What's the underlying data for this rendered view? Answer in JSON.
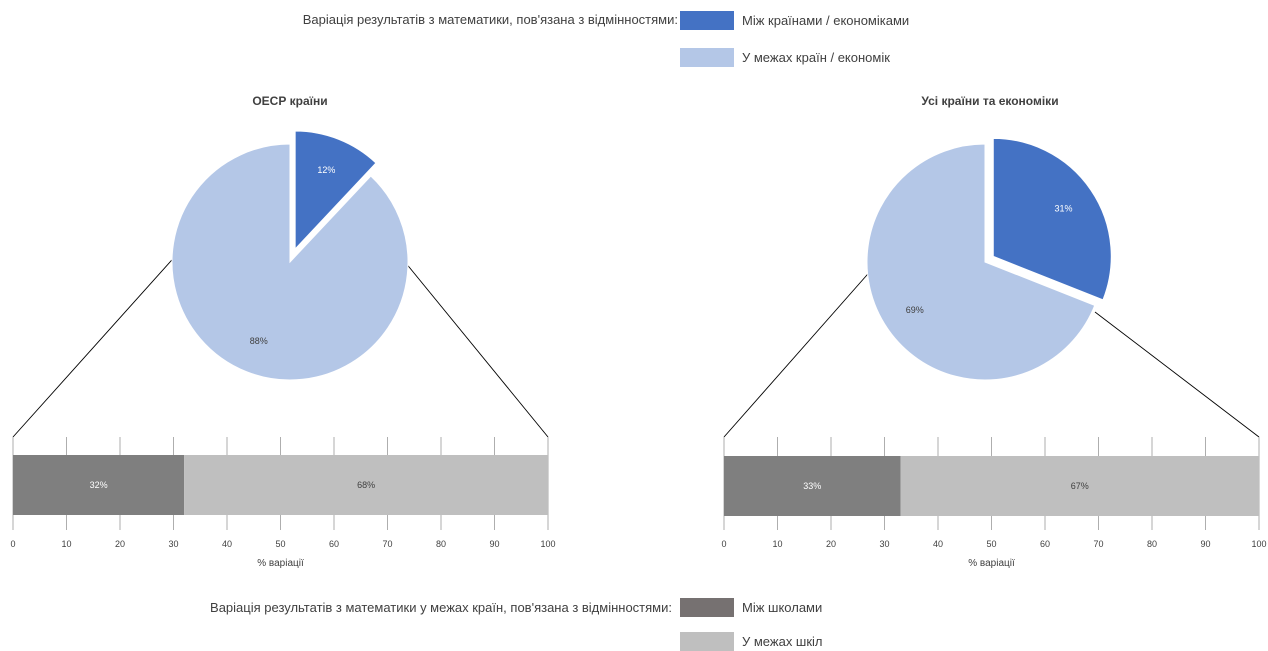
{
  "top_legend": {
    "prefix": "Варіація результатів з математики, пов'язана з відмінностями:",
    "items": [
      {
        "label": "Між країнами / економіками",
        "color": "#4472C4"
      },
      {
        "label": "У межах країн / економік",
        "color": "#B4C7E7"
      }
    ]
  },
  "bottom_legend": {
    "prefix": "Варіація результатів з математики у межах країн, пов'язана з відмінностями:",
    "items": [
      {
        "label": "Між школами",
        "color": "#767171"
      },
      {
        "label": "У межах шкіл",
        "color": "#BFBFBF"
      }
    ]
  },
  "chart_data": [
    {
      "type": "pie",
      "title": "ОЕСР країни",
      "slices": [
        {
          "name": "Між країнами / економіками",
          "value": 12,
          "label": "12%",
          "color": "#4472C4",
          "exploded": true
        },
        {
          "name": "У межах країн / економік",
          "value": 88,
          "label": "88%",
          "color": "#B4C7E7",
          "exploded": false
        }
      ]
    },
    {
      "type": "bar",
      "orientation": "horizontal",
      "stacked": true,
      "xlabel": "% варіації",
      "xlim": [
        0,
        100
      ],
      "ticks": [
        0,
        10,
        20,
        30,
        40,
        50,
        60,
        70,
        80,
        90,
        100
      ],
      "series": [
        {
          "name": "Між школами",
          "value": 32,
          "label": "32%",
          "color": "#7F7F7F"
        },
        {
          "name": "У межах шкіл",
          "value": 68,
          "label": "68%",
          "color": "#BFBFBF"
        }
      ]
    },
    {
      "type": "pie",
      "title": "Усі країни та економіки",
      "slices": [
        {
          "name": "Між країнами / економіками",
          "value": 31,
          "label": "31%",
          "color": "#4472C4",
          "exploded": true
        },
        {
          "name": "У межах країн / економік",
          "value": 69,
          "label": "69%",
          "color": "#B4C7E7",
          "exploded": false
        }
      ]
    },
    {
      "type": "bar",
      "orientation": "horizontal",
      "stacked": true,
      "xlabel": "% варіації",
      "xlim": [
        0,
        100
      ],
      "ticks": [
        0,
        10,
        20,
        30,
        40,
        50,
        60,
        70,
        80,
        90,
        100
      ],
      "series": [
        {
          "name": "Між школами",
          "value": 33,
          "label": "33%",
          "color": "#7F7F7F"
        },
        {
          "name": "У межах шкіл",
          "value": 67,
          "label": "67%",
          "color": "#BFBFBF"
        }
      ]
    }
  ]
}
